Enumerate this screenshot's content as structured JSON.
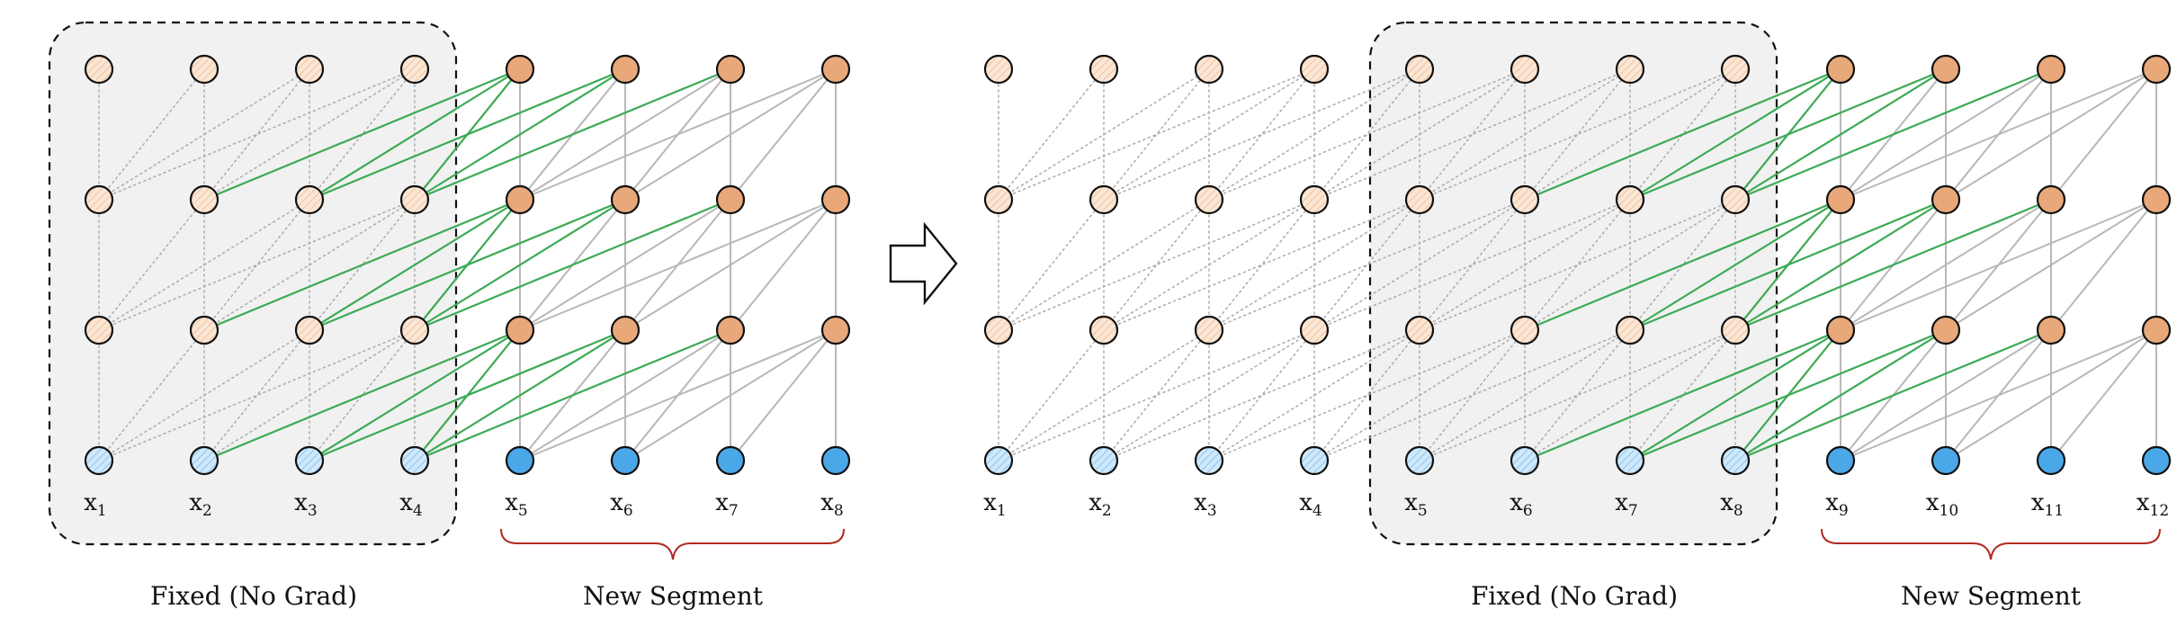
{
  "left_panel": {
    "fixed_label": "Fixed (No Grad)",
    "new_label": "New Segment",
    "tokens": [
      {
        "base": "x",
        "sub": "1"
      },
      {
        "base": "x",
        "sub": "2"
      },
      {
        "base": "x",
        "sub": "3"
      },
      {
        "base": "x",
        "sub": "4"
      },
      {
        "base": "x",
        "sub": "5"
      },
      {
        "base": "x",
        "sub": "6"
      },
      {
        "base": "x",
        "sub": "7"
      },
      {
        "base": "x",
        "sub": "8"
      }
    ]
  },
  "right_panel": {
    "fixed_label": "Fixed (No Grad)",
    "new_label": "New Segment",
    "tokens": [
      {
        "base": "x",
        "sub": "1"
      },
      {
        "base": "x",
        "sub": "2"
      },
      {
        "base": "x",
        "sub": "3"
      },
      {
        "base": "x",
        "sub": "4"
      },
      {
        "base": "x",
        "sub": "5"
      },
      {
        "base": "x",
        "sub": "6"
      },
      {
        "base": "x",
        "sub": "7"
      },
      {
        "base": "x",
        "sub": "8"
      },
      {
        "base": "x",
        "sub": "9"
      },
      {
        "base": "x",
        "sub": "10"
      },
      {
        "base": "x",
        "sub": "11"
      },
      {
        "base": "x",
        "sub": "12"
      }
    ]
  },
  "colors": {
    "active_hidden": "#E9A87A",
    "faded_hidden": "#FBE6D4",
    "active_input": "#4BA8E8",
    "faded_input": "#CFE8FA",
    "green_edge": "#3DAA55",
    "gray_edge": "#B8B8B8",
    "dotted_edge": "#AFAFAF",
    "brace": "#B02A20",
    "fixed_box_fill": "#F1F1F1"
  }
}
